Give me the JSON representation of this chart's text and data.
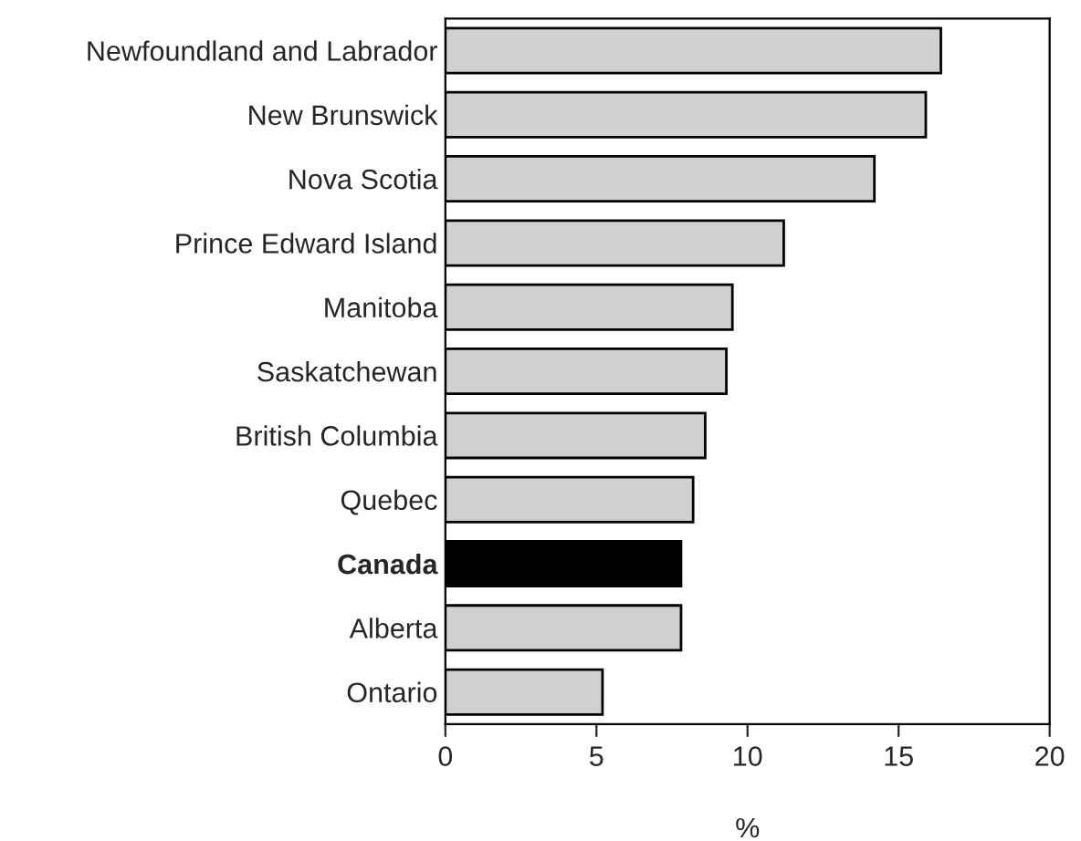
{
  "chart_data": {
    "type": "bar",
    "orientation": "horizontal",
    "xlabel": "%",
    "categories": [
      "Newfoundland and Labrador",
      "New Brunswick",
      "Nova Scotia",
      "Prince Edward Island",
      "Manitoba",
      "Saskatchewan",
      "British Columbia",
      "Quebec",
      "Canada",
      "Alberta",
      "Ontario"
    ],
    "values": [
      16.4,
      15.9,
      14.2,
      11.2,
      9.5,
      9.3,
      8.6,
      8.2,
      7.8,
      7.8,
      5.2
    ],
    "colors": [
      "#d0d0d0",
      "#d0d0d0",
      "#d0d0d0",
      "#d0d0d0",
      "#d0d0d0",
      "#d0d0d0",
      "#d0d0d0",
      "#d0d0d0",
      "#000000",
      "#d0d0d0",
      "#d0d0d0"
    ],
    "xlim": [
      0,
      20
    ],
    "xticks": [
      0,
      5,
      10,
      15,
      20
    ],
    "grid": false,
    "legend": false
  }
}
